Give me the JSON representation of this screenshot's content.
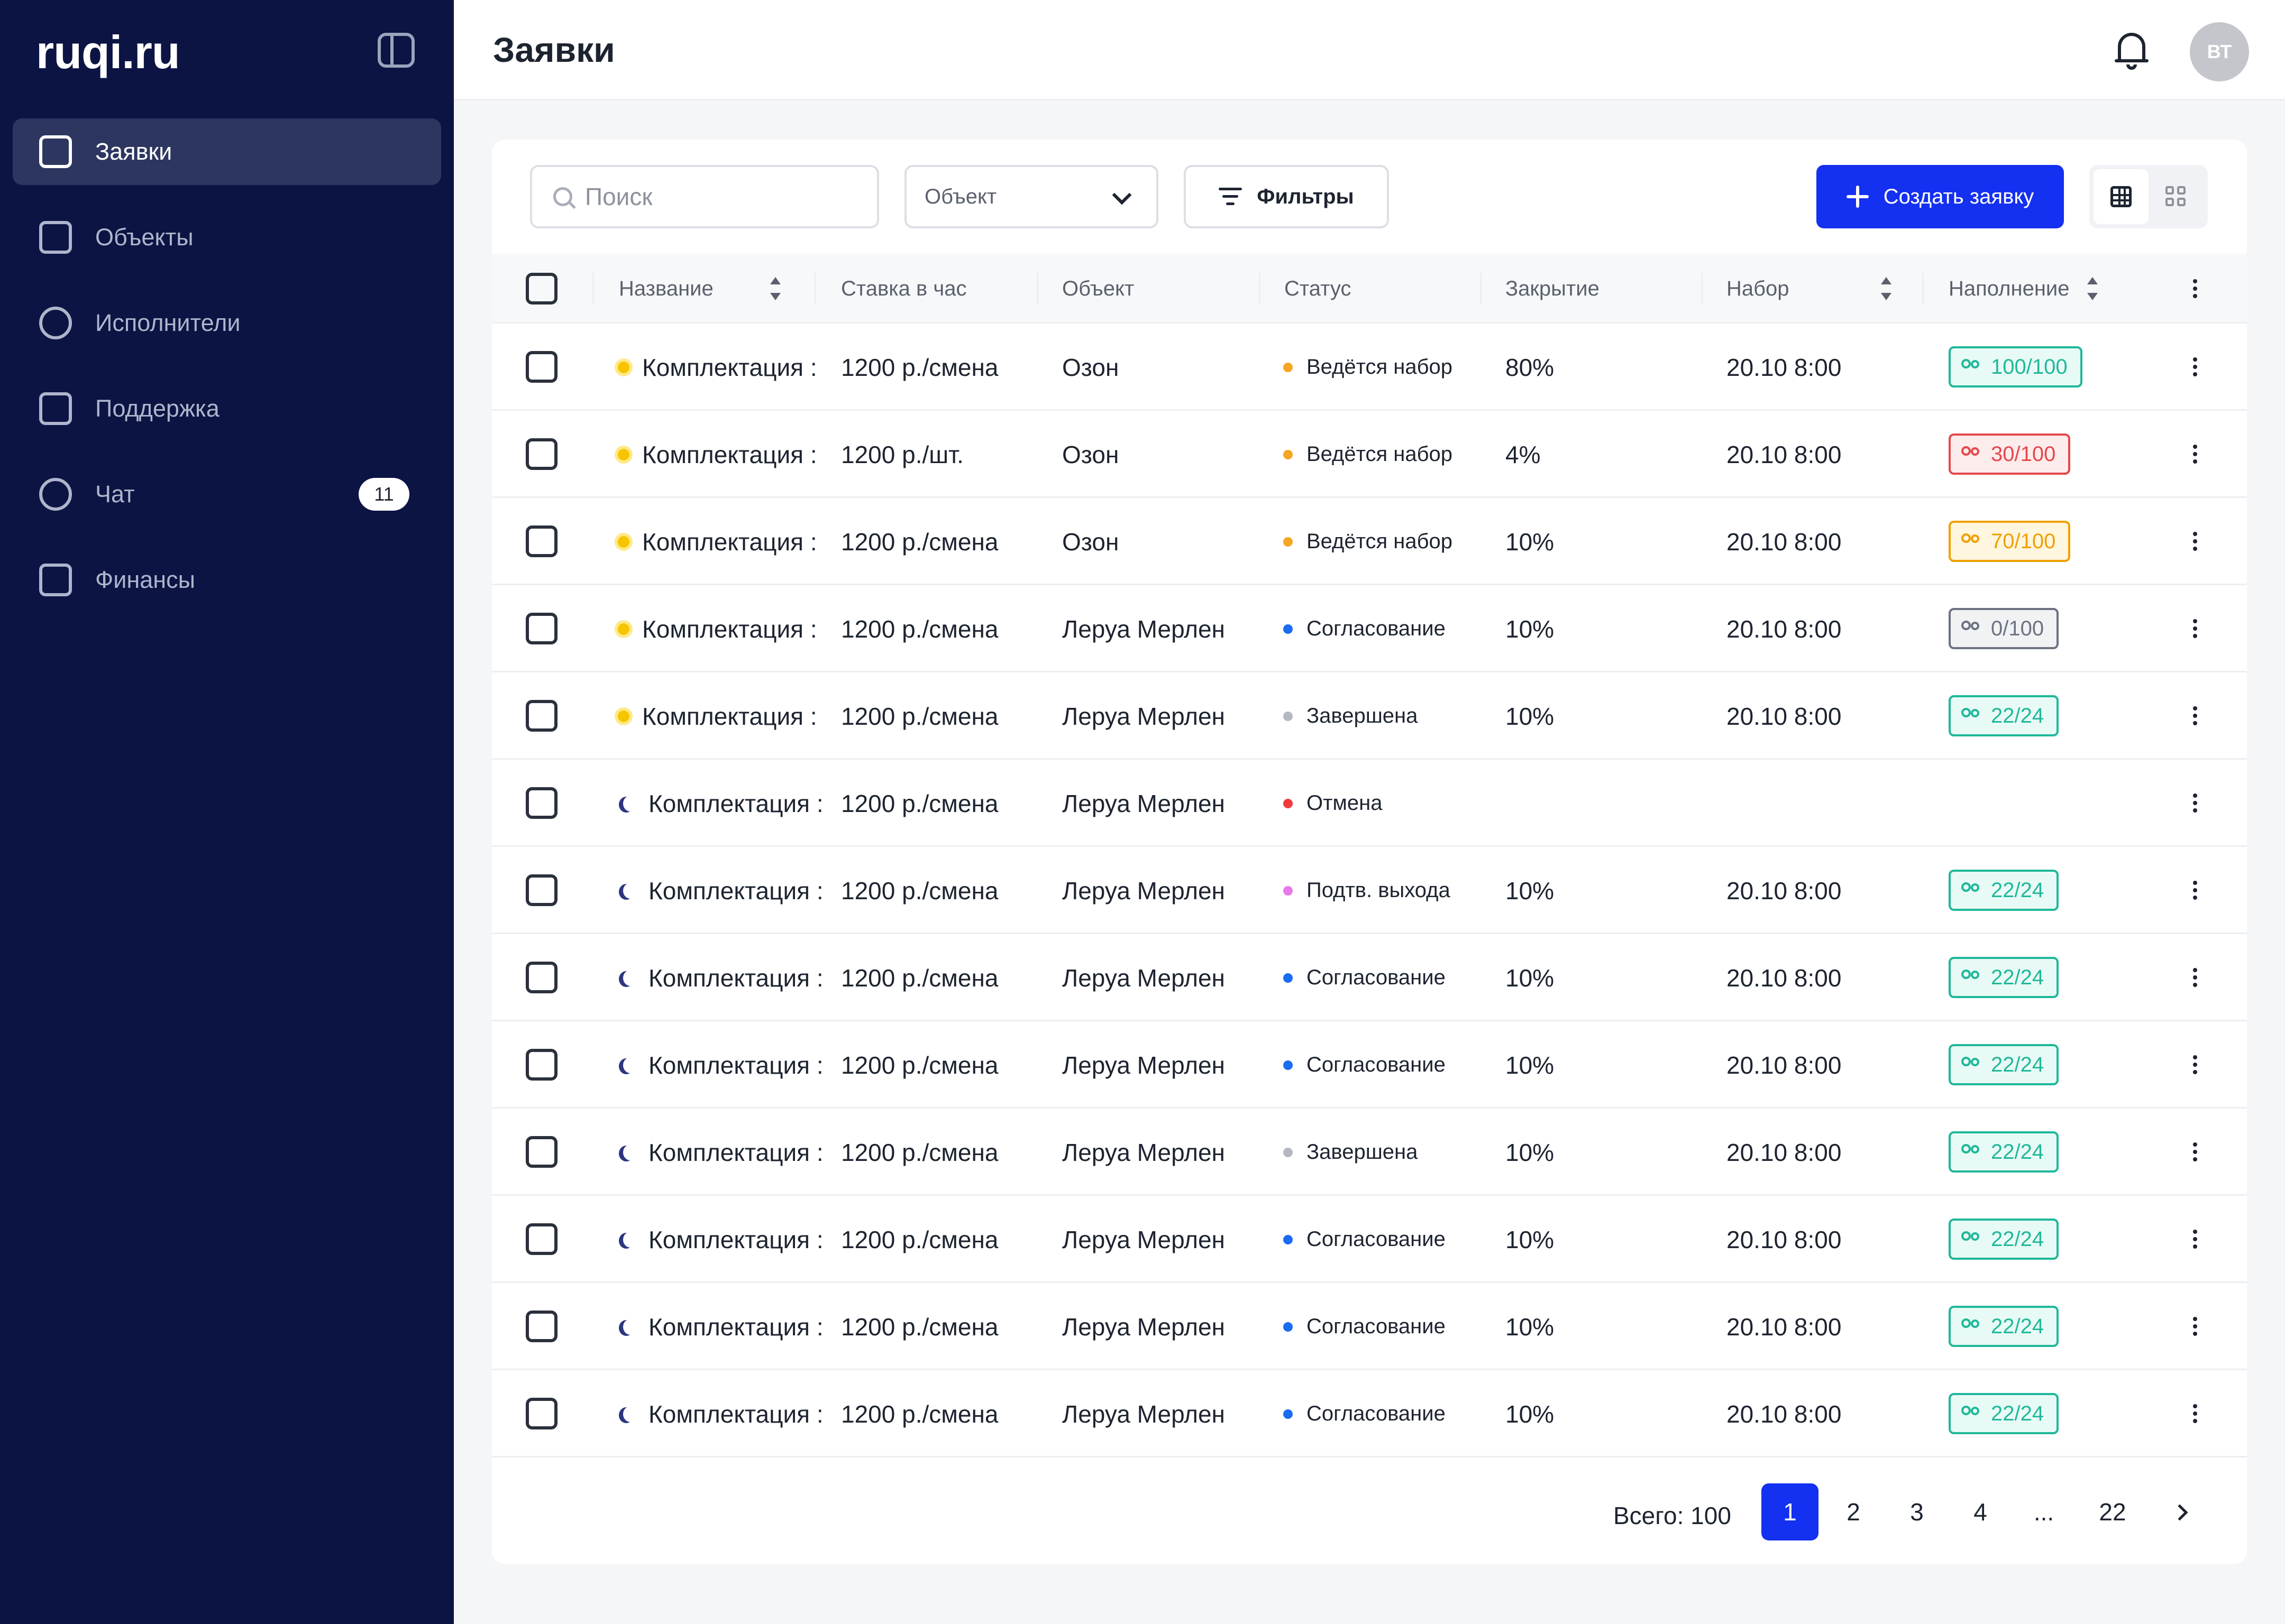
{
  "app": {
    "logo": "ruqi.ru"
  },
  "sidebar": {
    "items": [
      {
        "label": "Заявки",
        "icon": "clipboard-icon",
        "active": true
      },
      {
        "label": "Объекты",
        "icon": "building-icon"
      },
      {
        "label": "Исполнители",
        "icon": "users-icon"
      },
      {
        "label": "Поддержка",
        "icon": "help-bubble-icon"
      },
      {
        "label": "Чат",
        "icon": "chat-icon",
        "badge": "11"
      },
      {
        "label": "Финансы",
        "icon": "wallet-icon"
      }
    ]
  },
  "header": {
    "title": "Заявки",
    "avatar": "ВТ"
  },
  "toolbar": {
    "search_placeholder": "Поиск",
    "object_select": "Объект",
    "filters_label": "Фильтры",
    "create_label": "Создать заявку"
  },
  "table": {
    "columns": [
      "Название",
      "Ставка в час",
      "Объект",
      "Статус",
      "Закрытие",
      "Набор",
      "Наполнение"
    ],
    "rows": [
      {
        "shift": "day",
        "name": "Комплектация :",
        "rate": "1200 р./смена",
        "object": "Озон",
        "status": "Ведётся набор",
        "status_color": "#f5a623",
        "closing": "80%",
        "recruit": "20.10 8:00",
        "fill": "100/100",
        "fill_tone": "green"
      },
      {
        "shift": "day",
        "name": "Комплектация :",
        "rate": "1200 р./шт.",
        "object": "Озон",
        "status": "Ведётся набор",
        "status_color": "#f5a623",
        "closing": "4%",
        "recruit": "20.10 8:00",
        "fill": "30/100",
        "fill_tone": "red"
      },
      {
        "shift": "day",
        "name": "Комплектация :",
        "rate": "1200 р./смена",
        "object": "Озон",
        "status": "Ведётся набор",
        "status_color": "#f5a623",
        "closing": "10%",
        "recruit": "20.10 8:00",
        "fill": "70/100",
        "fill_tone": "orange"
      },
      {
        "shift": "day",
        "name": "Комплектация :",
        "rate": "1200 р./смена",
        "object": "Леруа Мерлен",
        "status": "Согласование",
        "status_color": "#1a6cf0",
        "closing": "10%",
        "recruit": "20.10 8:00",
        "fill": "0/100",
        "fill_tone": "gray"
      },
      {
        "shift": "day",
        "name": "Комплектация :",
        "rate": "1200 р./смена",
        "object": "Леруа Мерлен",
        "status": "Завершена",
        "status_color": "#b4b8c0",
        "closing": "10%",
        "recruit": "20.10 8:00",
        "fill": "22/24",
        "fill_tone": "green"
      },
      {
        "shift": "night",
        "name": "Комплектация :",
        "rate": "1200 р./смена",
        "object": "Леруа Мерлен",
        "status": "Отмена",
        "status_color": "#f03a3a",
        "closing": "",
        "recruit": "",
        "fill": "",
        "fill_tone": ""
      },
      {
        "shift": "night",
        "name": "Комплектация :",
        "rate": "1200 р./смена",
        "object": "Леруа Мерлен",
        "status": "Подтв. выхода",
        "status_color": "#e879e8",
        "closing": "10%",
        "recruit": "20.10 8:00",
        "fill": "22/24",
        "fill_tone": "green"
      },
      {
        "shift": "night",
        "name": "Комплектация :",
        "rate": "1200 р./смена",
        "object": "Леруа Мерлен",
        "status": "Согласование",
        "status_color": "#1a6cf0",
        "closing": "10%",
        "recruit": "20.10 8:00",
        "fill": "22/24",
        "fill_tone": "green"
      },
      {
        "shift": "night",
        "name": "Комплектация :",
        "rate": "1200 р./смена",
        "object": "Леруа Мерлен",
        "status": "Согласование",
        "status_color": "#1a6cf0",
        "closing": "10%",
        "recruit": "20.10 8:00",
        "fill": "22/24",
        "fill_tone": "green"
      },
      {
        "shift": "night",
        "name": "Комплектация :",
        "rate": "1200 р./смена",
        "object": "Леруа Мерлен",
        "status": "Завершена",
        "status_color": "#b4b8c0",
        "closing": "10%",
        "recruit": "20.10 8:00",
        "fill": "22/24",
        "fill_tone": "green"
      },
      {
        "shift": "night",
        "name": "Комплектация :",
        "rate": "1200 р./смена",
        "object": "Леруа Мерлен",
        "status": "Согласование",
        "status_color": "#1a6cf0",
        "closing": "10%",
        "recruit": "20.10 8:00",
        "fill": "22/24",
        "fill_tone": "green"
      },
      {
        "shift": "night",
        "name": "Комплектация :",
        "rate": "1200 р./смена",
        "object": "Леруа Мерлен",
        "status": "Согласование",
        "status_color": "#1a6cf0",
        "closing": "10%",
        "recruit": "20.10 8:00",
        "fill": "22/24",
        "fill_tone": "green"
      },
      {
        "shift": "night",
        "name": "Комплектация :",
        "rate": "1200 р./смена",
        "object": "Леруа Мерлен",
        "status": "Согласование",
        "status_color": "#1a6cf0",
        "closing": "10%",
        "recruit": "20.10 8:00",
        "fill": "22/24",
        "fill_tone": "green"
      }
    ]
  },
  "fill_tones": {
    "green": {
      "color": "#1fb89a",
      "bg": "#e8faf5"
    },
    "red": {
      "color": "#e5484d",
      "bg": "#fdecec"
    },
    "orange": {
      "color": "#f0a000",
      "bg": "#fff6e0"
    },
    "gray": {
      "color": "#6b7280",
      "bg": "#f1f2f4"
    }
  },
  "pagination": {
    "total": "Всего: 100",
    "pages": [
      "1",
      "2",
      "3",
      "4",
      "...",
      "22"
    ],
    "current": "1"
  }
}
